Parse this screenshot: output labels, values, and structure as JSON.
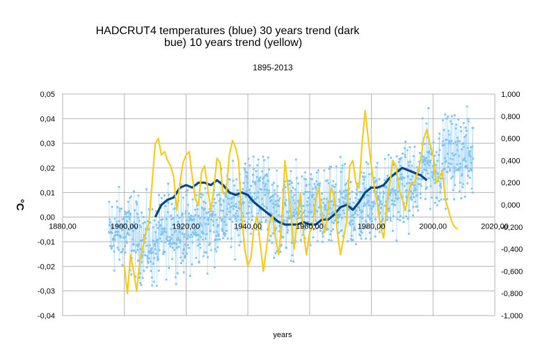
{
  "chart_data": {
    "type": "line",
    "title_line1": "HADCRUT4 temperatures (blue)  30 years trend (dark",
    "title_line2": "bue) 10 years trend (yellow)",
    "subtitle": "1895-2013",
    "xlabel": "years",
    "ylabel": "°C",
    "xlim": [
      1880,
      2020
    ],
    "ylim_left": [
      -0.04,
      0.05
    ],
    "ylim_right": [
      -1.0,
      1.0
    ],
    "x_ticks": [
      "1880,00",
      "1900,00",
      "1920,00",
      "1940,00",
      "1960,00",
      "1980,00",
      "2000,00",
      "2020,00"
    ],
    "y_left_ticks": [
      "0,05",
      "0,04",
      "0,03",
      "0,02",
      "0,01",
      "0,00",
      "-0,01",
      "-0,02",
      "-0,03",
      "-0,04"
    ],
    "y_right_ticks": [
      "1,000",
      "0,800",
      "0,600",
      "0,400",
      "0,200",
      "0,000",
      "-0,200",
      "-0,400",
      "-0,600",
      "-0,800",
      "-1,000"
    ],
    "grid": true,
    "colors": {
      "monthly": "#7fc4f2",
      "trend30": "#004586",
      "trend10": "#f5cc1a",
      "grid": "#b3b3b3"
    },
    "series": [
      {
        "axis": "right",
        "color": "#7fc4f2",
        "monthly_points_per_year": 12,
        "anchors": [
          [
            1895,
            -0.28
          ],
          [
            1900,
            -0.22
          ],
          [
            1905,
            -0.3
          ],
          [
            1910,
            -0.4
          ],
          [
            1915,
            -0.18
          ],
          [
            1920,
            -0.25
          ],
          [
            1925,
            -0.18
          ],
          [
            1930,
            -0.12
          ],
          [
            1935,
            -0.05
          ],
          [
            1940,
            0.1
          ],
          [
            1944,
            0.12
          ],
          [
            1950,
            -0.1
          ],
          [
            1955,
            -0.06
          ],
          [
            1960,
            -0.03
          ],
          [
            1965,
            -0.08
          ],
          [
            1970,
            -0.02
          ],
          [
            1975,
            -0.05
          ],
          [
            1980,
            0.05
          ],
          [
            1985,
            0.05
          ],
          [
            1990,
            0.18
          ],
          [
            1995,
            0.15
          ],
          [
            1998,
            0.48
          ],
          [
            2000,
            0.3
          ],
          [
            2005,
            0.45
          ],
          [
            2010,
            0.45
          ],
          [
            2013,
            0.42
          ]
        ]
      },
      {
        "axis": "left",
        "color": "#004586",
        "points": [
          [
            1910,
            0.0
          ],
          [
            1912,
            0.005
          ],
          [
            1914,
            0.007
          ],
          [
            1916,
            0.008
          ],
          [
            1918,
            0.012
          ],
          [
            1920,
            0.013
          ],
          [
            1922,
            0.012
          ],
          [
            1924,
            0.014
          ],
          [
            1926,
            0.014
          ],
          [
            1928,
            0.013
          ],
          [
            1930,
            0.015
          ],
          [
            1932,
            0.013
          ],
          [
            1934,
            0.01
          ],
          [
            1936,
            0.009
          ],
          [
            1938,
            0.01
          ],
          [
            1940,
            0.009
          ],
          [
            1942,
            0.006
          ],
          [
            1944,
            0.004
          ],
          [
            1946,
            0.002
          ],
          [
            1948,
            0.0
          ],
          [
            1950,
            -0.002
          ],
          [
            1952,
            -0.003
          ],
          [
            1954,
            -0.003
          ],
          [
            1956,
            -0.003
          ],
          [
            1958,
            -0.002
          ],
          [
            1960,
            -0.003
          ],
          [
            1962,
            -0.003
          ],
          [
            1964,
            -0.001
          ],
          [
            1966,
            -0.001
          ],
          [
            1968,
            0.001
          ],
          [
            1970,
            0.004
          ],
          [
            1972,
            0.005
          ],
          [
            1974,
            0.003
          ],
          [
            1976,
            0.006
          ],
          [
            1978,
            0.01
          ],
          [
            1980,
            0.012
          ],
          [
            1982,
            0.012
          ],
          [
            1984,
            0.013
          ],
          [
            1986,
            0.016
          ],
          [
            1988,
            0.018
          ],
          [
            1990,
            0.02
          ],
          [
            1992,
            0.019
          ],
          [
            1994,
            0.018
          ],
          [
            1996,
            0.017
          ],
          [
            1998,
            0.015
          ]
        ]
      },
      {
        "axis": "right",
        "color": "#f5cc1a",
        "points": [
          [
            1900,
            -0.55
          ],
          [
            1901,
            -0.8
          ],
          [
            1902,
            -0.45
          ],
          [
            1903,
            -0.6
          ],
          [
            1904,
            -0.78
          ],
          [
            1905,
            -0.5
          ],
          [
            1906,
            -0.38
          ],
          [
            1907,
            -0.25
          ],
          [
            1908,
            -0.15
          ],
          [
            1909,
            0.2
          ],
          [
            1910,
            0.55
          ],
          [
            1911,
            0.6
          ],
          [
            1912,
            0.45
          ],
          [
            1913,
            0.48
          ],
          [
            1914,
            0.4
          ],
          [
            1915,
            0.35
          ],
          [
            1916,
            0.25
          ],
          [
            1917,
            -0.05
          ],
          [
            1918,
            0.2
          ],
          [
            1919,
            0.38
          ],
          [
            1920,
            0.45
          ],
          [
            1921,
            0.48
          ],
          [
            1922,
            0.25
          ],
          [
            1923,
            0.05
          ],
          [
            1924,
            0.0
          ],
          [
            1925,
            0.3
          ],
          [
            1926,
            0.35
          ],
          [
            1927,
            0.15
          ],
          [
            1928,
            -0.05
          ],
          [
            1929,
            0.15
          ],
          [
            1930,
            0.42
          ],
          [
            1931,
            0.38
          ],
          [
            1932,
            0.1
          ],
          [
            1933,
            0.1
          ],
          [
            1934,
            0.45
          ],
          [
            1935,
            0.58
          ],
          [
            1936,
            0.52
          ],
          [
            1937,
            0.4
          ],
          [
            1938,
            -0.1
          ],
          [
            1939,
            -0.4
          ],
          [
            1940,
            -0.55
          ],
          [
            1941,
            -0.48
          ],
          [
            1942,
            -0.2
          ],
          [
            1943,
            -0.1
          ],
          [
            1944,
            -0.35
          ],
          [
            1945,
            -0.6
          ],
          [
            1946,
            -0.4
          ],
          [
            1947,
            -0.15
          ],
          [
            1948,
            -0.1
          ],
          [
            1949,
            -0.3
          ],
          [
            1950,
            -0.45
          ],
          [
            1951,
            -0.15
          ],
          [
            1952,
            0.4
          ],
          [
            1953,
            0.15
          ],
          [
            1954,
            -0.1
          ],
          [
            1955,
            -0.4
          ],
          [
            1956,
            -0.15
          ],
          [
            1957,
            0.1
          ],
          [
            1958,
            -0.25
          ],
          [
            1959,
            -0.45
          ],
          [
            1960,
            -0.25
          ],
          [
            1961,
            -0.2
          ],
          [
            1962,
            0.05
          ],
          [
            1963,
            0.15
          ],
          [
            1964,
            -0.1
          ],
          [
            1965,
            -0.25
          ],
          [
            1966,
            -0.05
          ],
          [
            1967,
            0.15
          ],
          [
            1968,
            0.08
          ],
          [
            1969,
            -0.25
          ],
          [
            1970,
            -0.45
          ],
          [
            1971,
            -0.3
          ],
          [
            1972,
            -0.15
          ],
          [
            1973,
            0.35
          ],
          [
            1974,
            0.4
          ],
          [
            1975,
            0.2
          ],
          [
            1976,
            0.15
          ],
          [
            1977,
            0.55
          ],
          [
            1978,
            0.85
          ],
          [
            1979,
            0.6
          ],
          [
            1980,
            0.35
          ],
          [
            1981,
            0.15
          ],
          [
            1982,
            0.0
          ],
          [
            1983,
            -0.2
          ],
          [
            1984,
            -0.3
          ],
          [
            1985,
            0.0
          ],
          [
            1986,
            0.2
          ],
          [
            1987,
            0.4
          ],
          [
            1988,
            0.35
          ],
          [
            1989,
            0.15
          ],
          [
            1990,
            0.05
          ],
          [
            1991,
            -0.05
          ],
          [
            1992,
            0.1
          ],
          [
            1993,
            0.2
          ],
          [
            1994,
            0.2
          ],
          [
            1995,
            0.3
          ],
          [
            1996,
            0.4
          ],
          [
            1997,
            0.6
          ],
          [
            1998,
            0.68
          ],
          [
            1999,
            0.55
          ],
          [
            2000,
            0.45
          ],
          [
            2001,
            0.2
          ],
          [
            2002,
            0.25
          ],
          [
            2003,
            0.3
          ],
          [
            2004,
            0.05
          ],
          [
            2005,
            -0.05
          ],
          [
            2006,
            -0.15
          ],
          [
            2007,
            -0.2
          ],
          [
            2008,
            -0.22
          ]
        ]
      }
    ]
  }
}
